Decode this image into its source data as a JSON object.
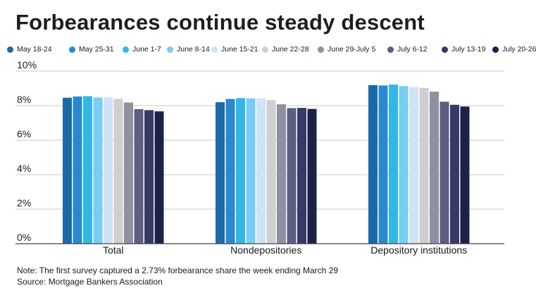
{
  "chart_data": {
    "type": "bar",
    "title": "Forbearances continue steady descent",
    "categories": [
      "Total",
      "Nondepositories",
      "Depository institutions"
    ],
    "ylim": [
      0,
      10
    ],
    "yticks": [
      "0%",
      "2%",
      "4%",
      "6%",
      "8%",
      "10%"
    ],
    "grid": true,
    "legend_position": "top",
    "series": [
      {
        "name": "May 18-24",
        "color": "#1b6aa8",
        "values": [
          8.46,
          8.2,
          9.19
        ]
      },
      {
        "name": "May 25-31",
        "color": "#2a88d0",
        "values": [
          8.53,
          8.39,
          9.17
        ]
      },
      {
        "name": "June 1-7",
        "color": "#32b6e6",
        "values": [
          8.55,
          8.44,
          9.22
        ]
      },
      {
        "name": "June 8-14",
        "color": "#77cdf3",
        "values": [
          8.47,
          8.42,
          9.13
        ]
      },
      {
        "name": "June 15-21",
        "color": "#cfe3f6",
        "values": [
          8.48,
          8.42,
          9.08
        ]
      },
      {
        "name": "June 22-28",
        "color": "#cfcfcf",
        "values": [
          8.39,
          8.32,
          9.03
        ]
      },
      {
        "name": "June 29-July 5",
        "color": "#8f90a2",
        "values": [
          8.18,
          8.08,
          8.81
        ]
      },
      {
        "name": "July 6-12",
        "color": "#5c5f83",
        "values": [
          7.8,
          7.86,
          8.23
        ]
      },
      {
        "name": "July 13-19",
        "color": "#363b66",
        "values": [
          7.74,
          7.87,
          8.05
        ]
      },
      {
        "name": "July 20-26",
        "color": "#1d2047",
        "values": [
          7.67,
          7.81,
          7.95
        ]
      }
    ]
  },
  "footer": {
    "note": "Note: The first survey captured a 2.73% forbearance share the week ending March 29",
    "source": "Source: Mortgage Bankers Association"
  }
}
